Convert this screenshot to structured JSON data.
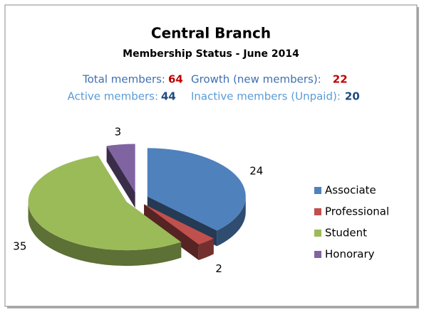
{
  "chart_data": {
    "type": "pie",
    "title": "Central Branch",
    "subtitle": "Membership Status - June 2014",
    "annotations": [
      {
        "label": "Total members:",
        "value": 64
      },
      {
        "label": "Growth (new members):",
        "value": 22
      },
      {
        "label": "Active members:",
        "value": 44
      },
      {
        "label": "Inactive members (Unpaid):",
        "value": 20
      }
    ],
    "categories": [
      "Associate",
      "Professional",
      "Student",
      "Honorary"
    ],
    "values": [
      24,
      2,
      35,
      3
    ],
    "colors": [
      "#4f81bd",
      "#c0504d",
      "#9bbb59",
      "#8064a2"
    ],
    "legend": "right"
  }
}
